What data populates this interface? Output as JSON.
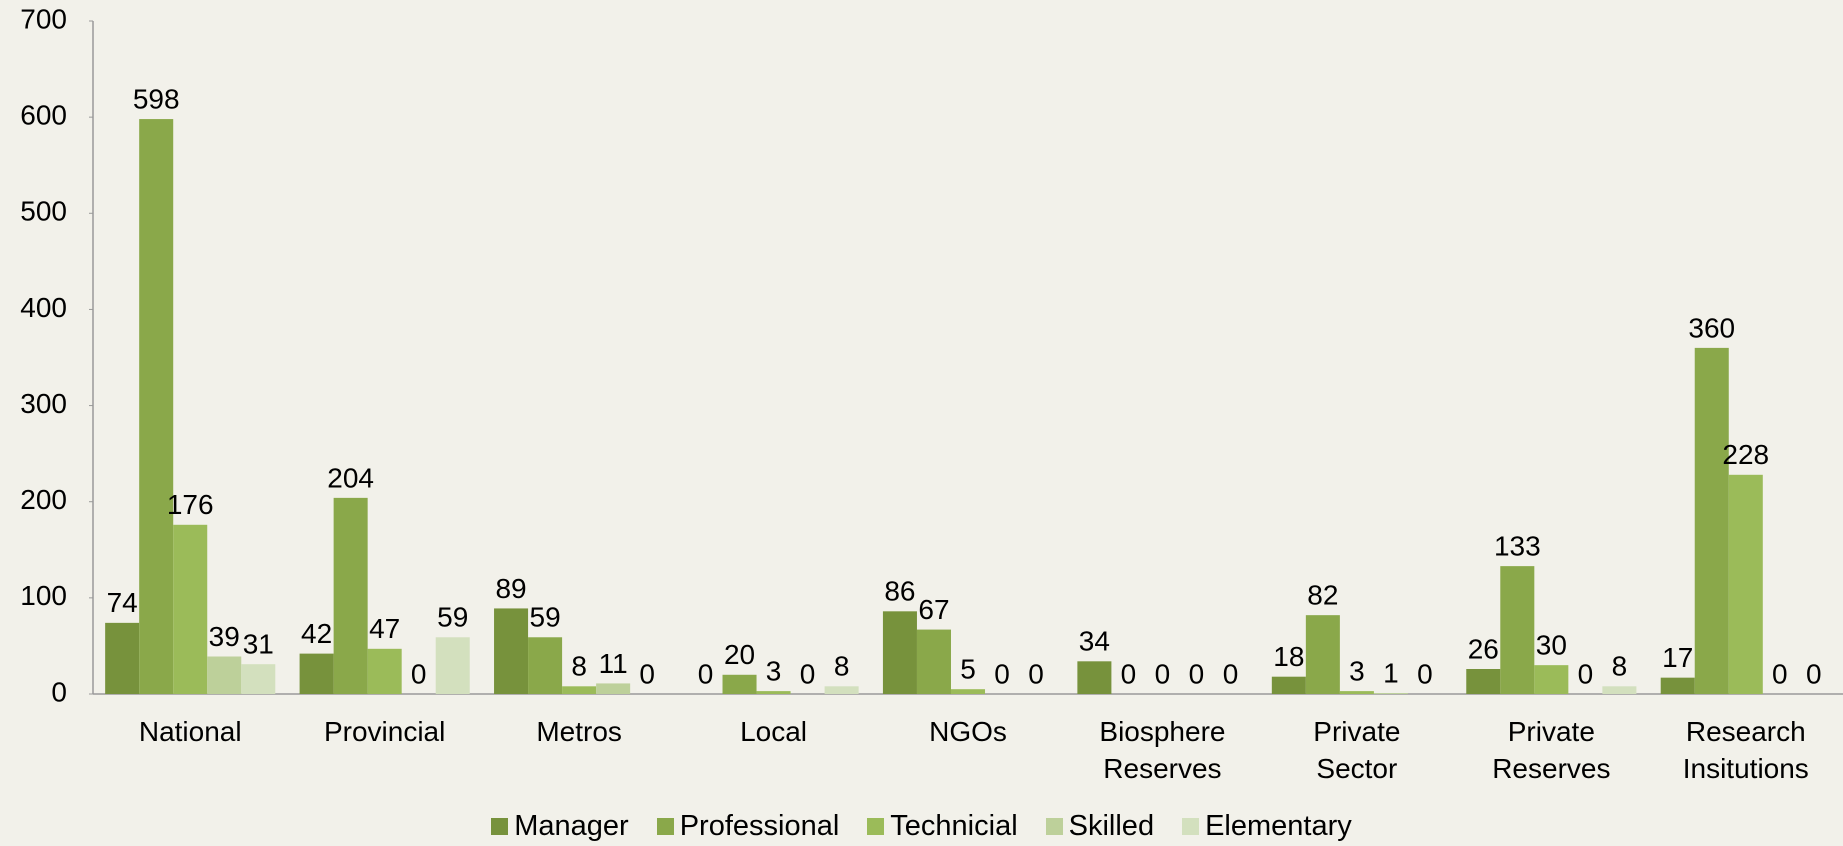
{
  "chart_data": {
    "type": "bar",
    "categories": [
      "National",
      "Provincial",
      "Metros",
      "Local",
      "NGOs",
      "Biosphere Reserves",
      "Private Sector",
      "Private Reserves",
      "Research Insitutions"
    ],
    "series": [
      {
        "name": "Manager",
        "color": "#77923c",
        "values": [
          74,
          42,
          89,
          0,
          86,
          34,
          18,
          26,
          17
        ]
      },
      {
        "name": "Professional",
        "color": "#8aa84a",
        "values": [
          598,
          204,
          59,
          20,
          67,
          0,
          82,
          133,
          360
        ]
      },
      {
        "name": "Technicial",
        "color": "#9bbb59",
        "values": [
          176,
          47,
          8,
          3,
          5,
          0,
          3,
          30,
          228
        ]
      },
      {
        "name": "Skilled",
        "color": "#bdd09a",
        "values": [
          39,
          0,
          11,
          0,
          0,
          0,
          1,
          0,
          0
        ]
      },
      {
        "name": "Elementary",
        "color": "#d3e0be",
        "values": [
          31,
          59,
          0,
          8,
          0,
          0,
          0,
          8,
          0
        ]
      }
    ],
    "ylim": [
      0,
      700
    ],
    "yticks": [
      0,
      100,
      200,
      300,
      400,
      500,
      600,
      700
    ],
    "grid": false,
    "legend": "bottom"
  }
}
